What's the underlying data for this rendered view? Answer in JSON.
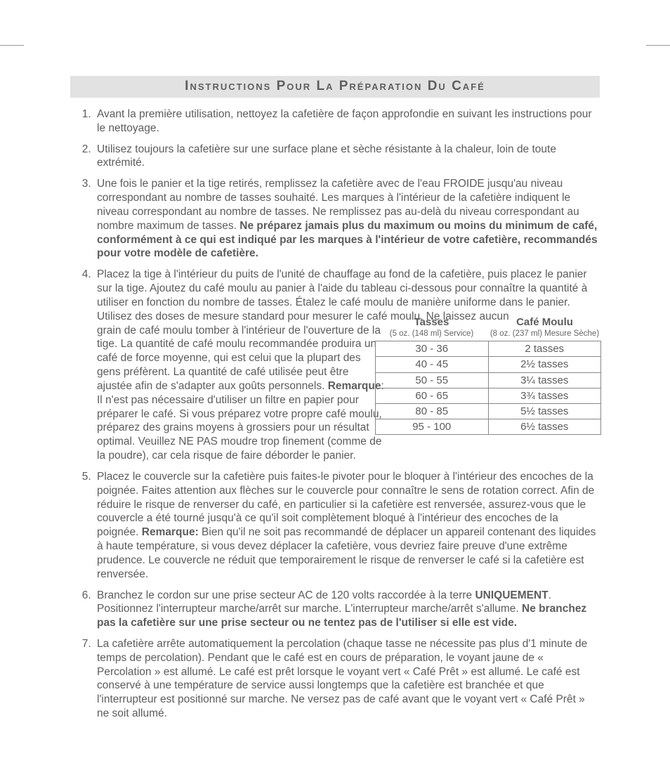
{
  "title": "Instructions Pour La Préparation Du Café",
  "items": {
    "i1": "Avant la première utilisation, nettoyez la cafetière de façon approfondie en suivant les instructions pour le nettoyage.",
    "i2": "Utilisez toujours la cafetière sur une surface plane et sèche résistante à la chaleur, loin de toute extrémité.",
    "i3a": "Une fois le panier et la tige retirés, remplissez la cafetière avec de l'eau FROIDE jusqu'au niveau correspondant au nombre de tasses souhaité. Les marques à l'intérieur de la cafetière indiquent le niveau correspondant au nombre de tasses. Ne remplissez pas au-delà du niveau correspondant au nombre maximum de tasses. ",
    "i3b": "Ne préparez jamais plus du maximum ou moins du minimum de café, conformément à ce qui est indiqué par les marques à l'intérieur de votre cafetière, recommandés pour votre modèle de cafetière.",
    "i4a": "Placez la tige à l'intérieur du puits de l'unité de chauffage au fond de la cafetière, puis placez le panier sur la tige. Ajoutez du café moulu au panier à l'aide du tableau ci-dessous pour connaître la quantité à utiliser en fonction du nombre de tasses. Étalez le café moulu de manière uniforme dans le panier. Utilisez des doses de mesure standard pour mesurer le café moulu. Ne laissez aucun ",
    "i4b": "grain de café moulu tomber à l'intérieur de l'ouverture de la tige. La quantité de café moulu recommandée produira un café de force moyenne, qui est celui que la plupart des gens préfèrent. La quantité de café utilisée peut être ajustée afin de s'adapter aux goûts personnels. ",
    "i4r": "Remarque",
    "i4c": ": Il n'est pas nécessaire d'utiliser un filtre en papier pour préparer le café. Si vous préparez votre propre café moulu, préparez des grains moyens à grossiers pour un résultat optimal. Veuillez NE PAS moudre trop finement (comme de la poudre), car cela risque de faire déborder le panier.",
    "i5a": "Placez le couvercle sur la cafetière puis faites-le pivoter pour le bloquer à l'intérieur des encoches de la poignée. Faites attention aux flèches sur le couvercle pour connaître le sens de rotation correct. Afin de réduire le risque de renverser du café, en particulier si la cafetière est renversée, assurez-vous que le couvercle a été tourné jusqu'à ce qu'il soit complètement bloqué à l'intérieur des encoches de la poignée. ",
    "i5r": "Remarque:",
    "i5b": " Bien qu'il ne soit pas recommandé de déplacer un appareil contenant des liquides à haute température, si vous devez déplacer la cafetière, vous devriez faire preuve d'une extrême prudence. Le couvercle ne réduit que temporairement le risque de renverser le café si la cafetière est renversée.",
    "i6a": "Branchez le cordon sur une prise secteur AC de 120 volts raccordée à la terre ",
    "i6u": "UNIQUEMENT",
    "i6b": ". Positionnez l'interrupteur marche/arrêt sur marche. L'interrupteur marche/arrêt s'allume. ",
    "i6c": "Ne branchez pas la cafetière sur une prise secteur ou ne tentez pas de l'utiliser si elle est vide.",
    "i7": "La cafetière arrête automatiquement la percolation (chaque tasse ne nécessite pas plus d'1 minute de temps de percolation). Pendant que le café est en cours de préparation, le voyant jaune de « Percolation » est allumé. Le café est prêt lorsque le voyant vert « Café Prêt » est allumé. Le café est conservé à une température de service aussi longtemps que la cafetière est branchée et que l'interrupteur est positionné sur marche. Ne versez pas de café avant que le voyant vert « Café Prêt » ne soit allumé."
  },
  "table": {
    "h1": "Tasses",
    "h2": "Café Moulu",
    "s1": "(5 oz. (148 ml) Service)",
    "s2": "(8 oz. (237 ml) Mesure Sèche)",
    "rows": [
      [
        "30 - 36",
        "2 tasses"
      ],
      [
        "40 - 45",
        "2½ tasses"
      ],
      [
        "50 - 55",
        "3¼ tasses"
      ],
      [
        "60 - 65",
        "3¾ tasses"
      ],
      [
        "80 - 85",
        "5½ tasses"
      ],
      [
        "95 - 100",
        "6½ tasses"
      ]
    ]
  }
}
